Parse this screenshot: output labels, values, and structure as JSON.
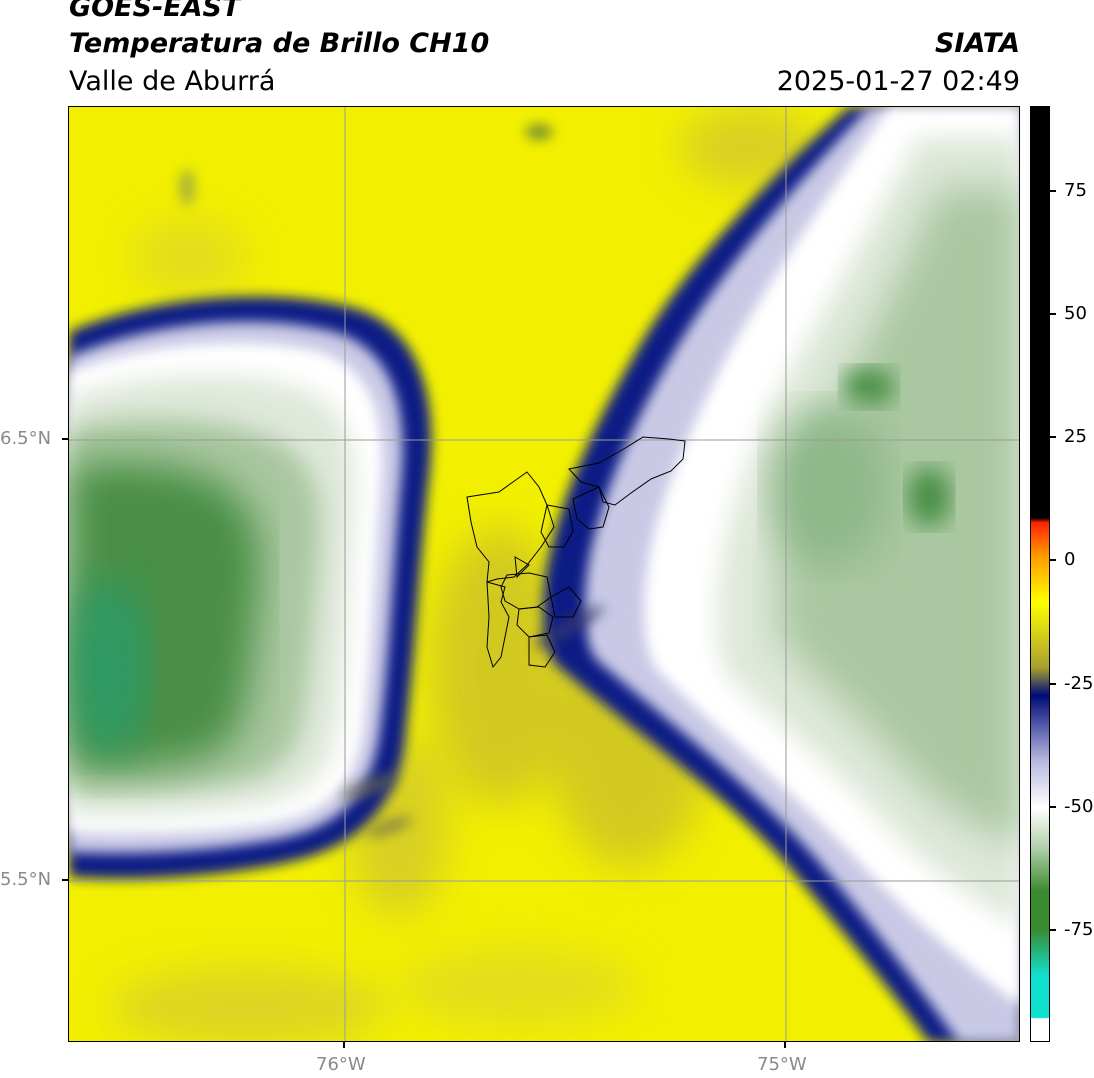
{
  "header": {
    "satellite": "GOES-EAST",
    "product": "Temperatura de Brillo CH10",
    "region": "Valle de Aburrá",
    "organization": "SIATA",
    "timestamp": "2025-01-27 02:49"
  },
  "axes": {
    "x_ticks": [
      "76°W",
      "75°W"
    ],
    "y_ticks": [
      "6.5°N",
      "5.5°N"
    ]
  },
  "colorbar": {
    "ticks": [
      "75",
      "50",
      "25",
      "0",
      "-25",
      "-50",
      "-75"
    ],
    "colors": {
      "black": "#000000",
      "red": "#ff2200",
      "orange": "#ff9900",
      "yellow": "#ffff00",
      "olive": "#a8a030",
      "navy": "#000a7a",
      "lavender": "#b8b8e0",
      "white": "#ffffff",
      "lightgreen": "#b8d4b0",
      "green": "#3a8a30",
      "teal": "#10e0d0"
    }
  },
  "map_colors": {
    "yellow_bg": "#f2f000",
    "olive": "#bdb23a",
    "navy": "#101a85",
    "lavender": "#c9c9e6",
    "white": "#ffffff",
    "pale_green": "#dfe8da",
    "mid_green": "#a9c7a0",
    "dark_green": "#4a8f45",
    "teal_green": "#2f9a63",
    "grid": "#9a9a9a",
    "boundary": "#000000"
  }
}
